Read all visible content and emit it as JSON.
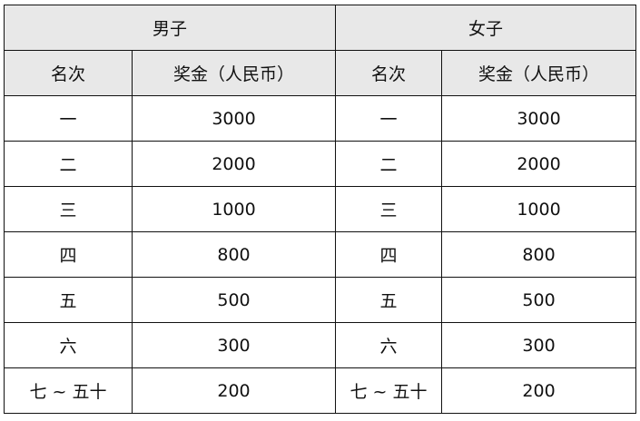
{
  "groups": [
    "男子",
    "女子"
  ],
  "columns": [
    "名次",
    "奖金（人民币）",
    "名次",
    "奖金（人民币）"
  ],
  "rows": [
    [
      "一",
      "3000",
      "一",
      "3000"
    ],
    [
      "二",
      "2000",
      "二",
      "2000"
    ],
    [
      "三",
      "1000",
      "三",
      "1000"
    ],
    [
      "四",
      "800",
      "四",
      "800"
    ],
    [
      "五",
      "500",
      "五",
      "500"
    ],
    [
      "六",
      "300",
      "六",
      "300"
    ],
    [
      "七 ~ 五十",
      "200",
      "七 ~ 五十",
      "200"
    ]
  ],
  "colors": {
    "header_bg": "#e8e8e8",
    "border": "#111111"
  }
}
